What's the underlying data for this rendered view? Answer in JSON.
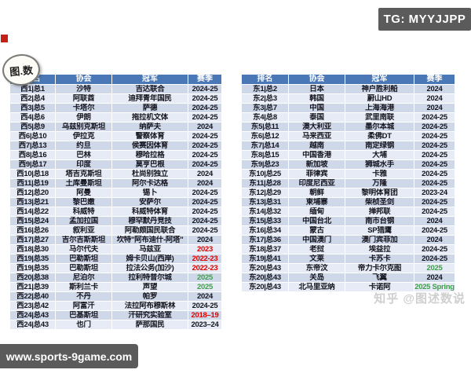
{
  "badges": {
    "tg_label": "TG: MYYJJPP",
    "site_label": "www.sports-9game.com",
    "watermark": "知乎 @图述数说",
    "logo_text": "图.数"
  },
  "colors": {
    "header_blue": "#4a77b5",
    "row_dark": "#cfd8e9",
    "row_light": "#e7ebf5",
    "season_red": "#dd0300",
    "season_green": "#3e9e4c",
    "badge_gray": "#5b5b5b",
    "red_mark": "#c32017"
  },
  "chart_data": [
    {
      "type": "table",
      "headers": [
        "排名",
        "协会",
        "冠军",
        "赛季"
      ],
      "rows": [
        {
          "rank": "西1|总1",
          "association": "沙特",
          "champion": "吉达联合",
          "season": "2024-25",
          "season_color": "default"
        },
        {
          "rank": "西2|总4",
          "association": "阿联酋",
          "champion": "迪拜青年国民",
          "season": "2024-25",
          "season_color": "default"
        },
        {
          "rank": "西3|总5",
          "association": "卡塔尔",
          "champion": "萨德",
          "season": "2024-25",
          "season_color": "default"
        },
        {
          "rank": "西4|总6",
          "association": "伊朗",
          "champion": "拖拉机文体",
          "season": "2024-25",
          "season_color": "default"
        },
        {
          "rank": "西5|总9",
          "association": "乌兹别克斯坦",
          "champion": "纳萨夫",
          "season": "2024",
          "season_color": "default"
        },
        {
          "rank": "西6|总10",
          "association": "伊拉克",
          "champion": "警察体育",
          "season": "2024-25",
          "season_color": "default"
        },
        {
          "rank": "西7|总13",
          "association": "约旦",
          "champion": "侯赛因体育",
          "season": "2024-25",
          "season_color": "default"
        },
        {
          "rank": "西8|总16",
          "association": "巴林",
          "champion": "穆哈拉格",
          "season": "2024-25",
          "season_color": "default"
        },
        {
          "rank": "西9|总17",
          "association": "印度",
          "champion": "莫亨巴根",
          "season": "2024-25",
          "season_color": "default"
        },
        {
          "rank": "西10|总18",
          "association": "塔吉克斯坦",
          "champion": "杜尚别独立",
          "season": "2024",
          "season_color": "default"
        },
        {
          "rank": "西11|总19",
          "association": "土库曼斯坦",
          "champion": "阿尔卡达格",
          "season": "2024",
          "season_color": "default"
        },
        {
          "rank": "西12|总20",
          "association": "阿曼",
          "champion": "锡卜",
          "season": "2024-25",
          "season_color": "default"
        },
        {
          "rank": "西13|总21",
          "association": "黎巴嫩",
          "champion": "安萨尔",
          "season": "2024-25",
          "season_color": "default"
        },
        {
          "rank": "西14|总22",
          "association": "科威特",
          "champion": "科威特体育",
          "season": "2024-25",
          "season_color": "default"
        },
        {
          "rank": "西15|总24",
          "association": "孟加拉国",
          "champion": "穆罕默丹竞技",
          "season": "2024-25",
          "season_color": "default"
        },
        {
          "rank": "西16|总26",
          "association": "叙利亚",
          "champion": "阿勒颇国民联合",
          "season": "2024-25",
          "season_color": "default"
        },
        {
          "rank": "西17|总27",
          "association": "吉尔吉斯斯坦",
          "champion": "坎特\"阿布迪什-阿塔\"",
          "season": "2024",
          "season_color": "default"
        },
        {
          "rank": "西18|总30",
          "association": "马尔代夫",
          "champion": "马兹亚",
          "season": "2023",
          "season_color": "red"
        },
        {
          "rank": "西19|总35",
          "association": "巴勒斯坦",
          "champion": "姆卡贝山(西岸)",
          "season": "2022-23",
          "season_color": "red"
        },
        {
          "rank": "西19|总35",
          "association": "巴勒斯坦",
          "champion": "拉法公务(加沙)",
          "season": "2022-23",
          "season_color": "red"
        },
        {
          "rank": "西20|总38",
          "association": "尼泊尔",
          "champion": "拉利特普尔城",
          "season": "2025",
          "season_color": "green"
        },
        {
          "rank": "西21|总39",
          "association": "斯利兰卡",
          "champion": "声望",
          "season": "2025",
          "season_color": "green"
        },
        {
          "rank": "西22|总40",
          "association": "不丹",
          "champion": "帕罗",
          "season": "2024",
          "season_color": "default"
        },
        {
          "rank": "西23|总42",
          "association": "阿富汗",
          "champion": "法拉阿布穆斯林",
          "season": "2024-25",
          "season_color": "default"
        },
        {
          "rank": "西24|总43",
          "association": "巴基斯坦",
          "champion": "汗研究实验室",
          "season": "2018–19",
          "season_color": "red"
        },
        {
          "rank": "西24|总43",
          "association": "也门",
          "champion": "萨那国民",
          "season": "2023–24",
          "season_color": "default"
        }
      ]
    },
    {
      "type": "table",
      "headers": [
        "排名",
        "协会",
        "冠军",
        "赛季"
      ],
      "rows": [
        {
          "rank": "东1|总2",
          "association": "日本",
          "champion": "神户胜利船",
          "season": "2024",
          "season_color": "default"
        },
        {
          "rank": "东2|总3",
          "association": "韩国",
          "champion": "蔚山HD",
          "season": "2024",
          "season_color": "default"
        },
        {
          "rank": "东3|总7",
          "association": "中国",
          "champion": "上海海港",
          "season": "2024",
          "season_color": "default"
        },
        {
          "rank": "东4|总8",
          "association": "泰国",
          "champion": "武里南联",
          "season": "2024-25",
          "season_color": "default"
        },
        {
          "rank": "东5|总11",
          "association": "澳大利亚",
          "champion": "墨尔本城",
          "season": "2024-25",
          "season_color": "default"
        },
        {
          "rank": "东6|总12",
          "association": "马来西亚",
          "champion": "柔佛DT",
          "season": "2024-25",
          "season_color": "default"
        },
        {
          "rank": "东7|总14",
          "association": "越南",
          "champion": "南定绿钢",
          "season": "2024-25",
          "season_color": "default"
        },
        {
          "rank": "东8|总15",
          "association": "中国香港",
          "champion": "大埔",
          "season": "2024-25",
          "season_color": "default"
        },
        {
          "rank": "东9|总23",
          "association": "新加坡",
          "champion": "狮城水手",
          "season": "2024-25",
          "season_color": "default"
        },
        {
          "rank": "东10|总25",
          "association": "菲律宾",
          "champion": "卡雅",
          "season": "2024-25",
          "season_color": "default"
        },
        {
          "rank": "东11|总28",
          "association": "印度尼西亚",
          "champion": "万隆",
          "season": "2024-25",
          "season_color": "default"
        },
        {
          "rank": "东12|总29",
          "association": "朝鲜",
          "champion": "黎明体育团",
          "season": "2023-24",
          "season_color": "default"
        },
        {
          "rank": "东13|总31",
          "association": "柬埔寨",
          "champion": "柴桢圣剑",
          "season": "2024-25",
          "season_color": "default"
        },
        {
          "rank": "东14|总32",
          "association": "缅甸",
          "champion": "掸邦联",
          "season": "2024-25",
          "season_color": "default"
        },
        {
          "rank": "东15|总33",
          "association": "中国台北",
          "champion": "南市台钢",
          "season": "2024",
          "season_color": "default"
        },
        {
          "rank": "东16|总34",
          "association": "蒙古",
          "champion": "SP猎鹰",
          "season": "2024-25",
          "season_color": "default"
        },
        {
          "rank": "东17|总36",
          "association": "中国澳门",
          "champion": "澳门宾菲加",
          "season": "2024",
          "season_color": "default"
        },
        {
          "rank": "东18|总37",
          "association": "老挝",
          "champion": "埃益拉",
          "season": "2024-25",
          "season_color": "default"
        },
        {
          "rank": "东19|总41",
          "association": "文莱",
          "champion": "卡苏卡",
          "season": "2024-25",
          "season_color": "default"
        },
        {
          "rank": "东20|总43",
          "association": "东帝汶",
          "champion": "帝力卡尔克图",
          "season": "2025",
          "season_color": "green"
        },
        {
          "rank": "东20|总43",
          "association": "关岛",
          "champion": "飞翼",
          "season": "2024",
          "season_color": "default"
        },
        {
          "rank": "东20|总43",
          "association": "北马里亚纳",
          "champion": "卡诺阿",
          "season": "2025 Spring",
          "season_color": "green"
        }
      ]
    }
  ]
}
